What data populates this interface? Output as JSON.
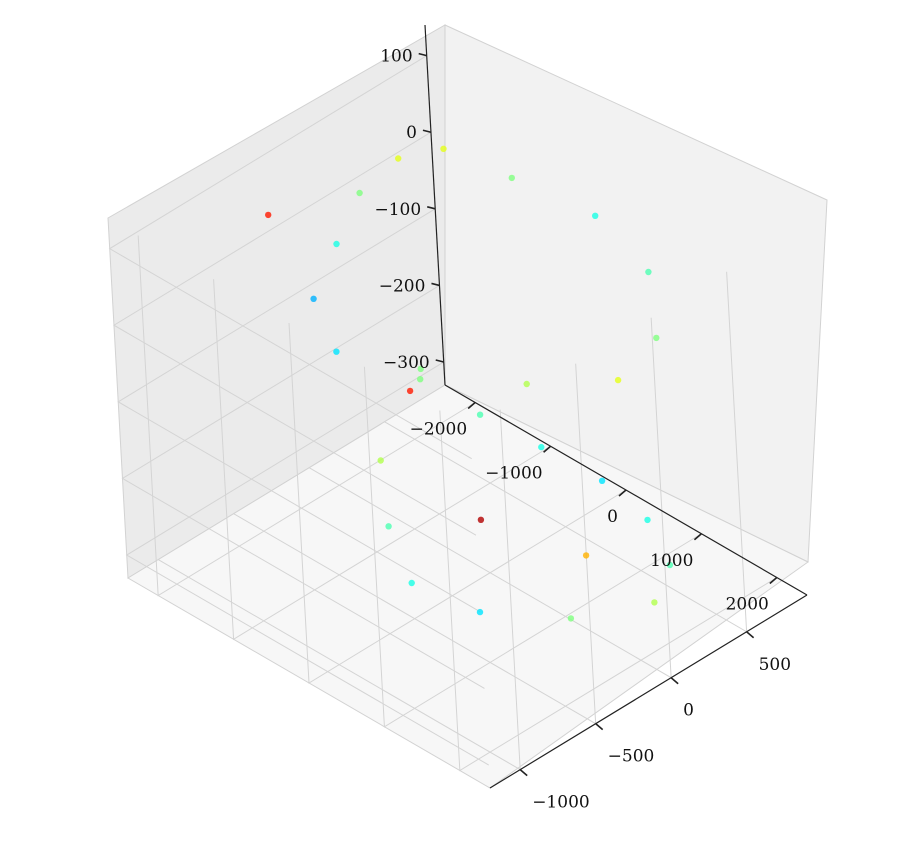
{
  "chart_data": {
    "type": "scatter",
    "projection": "3d",
    "title": "",
    "xlabel": "",
    "ylabel": "",
    "zlabel": "",
    "colormap": "jet",
    "colormap_stops": [
      "#00007f",
      "#0000ff",
      "#007fff",
      "#00ffff",
      "#7fff7f",
      "#ffff00",
      "#ff7f00",
      "#ff0000",
      "#7f0000"
    ],
    "grid": true,
    "axes": {
      "x": {
        "ticks": [
          -2000,
          -1000,
          0,
          1000,
          2000
        ],
        "tick_labels": [
          "−2000",
          "−1000",
          "0",
          "1000",
          "2000"
        ],
        "range": [
          -2400,
          2400
        ]
      },
      "y": {
        "ticks": [
          -1000,
          -500,
          0,
          500
        ],
        "tick_labels": [
          "−1000",
          "−500",
          "0",
          "500"
        ],
        "range": [
          -1200,
          900
        ]
      },
      "z": {
        "ticks": [
          100,
          0,
          -100,
          -200,
          -300
        ],
        "tick_labels": [
          "100",
          "0",
          "−100",
          "−200",
          "−300"
        ],
        "range": [
          -330,
          140
        ]
      }
    },
    "series": [
      {
        "points": [
          {
            "x": -1800,
            "y": 400,
            "z": 60,
            "c": 0.6
          },
          {
            "x": -1500,
            "y": 0,
            "z": 80,
            "c": 0.5
          },
          {
            "x": -1000,
            "y": -400,
            "z": 90,
            "c": 0.4
          },
          {
            "x": -500,
            "y": -800,
            "z": 95,
            "c": 0.3
          },
          {
            "x": 200,
            "y": -1000,
            "z": 90,
            "c": 0.35
          },
          {
            "x": 900,
            "y": -800,
            "z": 70,
            "c": 0.5
          },
          {
            "x": 1500,
            "y": -400,
            "z": 50,
            "c": 0.55
          },
          {
            "x": 1900,
            "y": 0,
            "z": 30,
            "c": 0.6
          },
          {
            "x": 1600,
            "y": 400,
            "z": 20,
            "c": 0.5
          },
          {
            "x": 900,
            "y": 700,
            "z": 30,
            "c": 0.45
          },
          {
            "x": 0,
            "y": 800,
            "z": 40,
            "c": 0.4
          },
          {
            "x": -900,
            "y": 700,
            "z": 50,
            "c": 0.5
          },
          {
            "x": -1600,
            "y": 600,
            "z": 60,
            "c": 0.6
          },
          {
            "x": -1700,
            "y": -500,
            "z": 100,
            "c": 0.85
          },
          {
            "x": 700,
            "y": -700,
            "z": 60,
            "c": 0.5
          },
          {
            "x": -1600,
            "y": 300,
            "z": -220,
            "c": 0.85
          },
          {
            "x": -1200,
            "y": -100,
            "z": -240,
            "c": 0.55
          },
          {
            "x": -500,
            "y": -400,
            "z": -250,
            "c": 0.45
          },
          {
            "x": 200,
            "y": -600,
            "z": -260,
            "c": 0.4
          },
          {
            "x": 900,
            "y": -500,
            "z": -270,
            "c": 0.35
          },
          {
            "x": 1500,
            "y": -200,
            "z": -280,
            "c": 0.5
          },
          {
            "x": 1800,
            "y": 200,
            "z": -290,
            "c": 0.55
          },
          {
            "x": 1400,
            "y": 500,
            "z": -300,
            "c": 0.45
          },
          {
            "x": 700,
            "y": 700,
            "z": -305,
            "c": 0.4
          },
          {
            "x": 0,
            "y": 750,
            "z": -300,
            "c": 0.35
          },
          {
            "x": -700,
            "y": 700,
            "z": -290,
            "c": 0.4
          },
          {
            "x": -1300,
            "y": 600,
            "z": -270,
            "c": 0.45
          },
          {
            "x": -300,
            "y": 100,
            "z": -290,
            "c": 0.95
          },
          {
            "x": 900,
            "y": 200,
            "z": -280,
            "c": 0.7
          }
        ]
      }
    ]
  }
}
